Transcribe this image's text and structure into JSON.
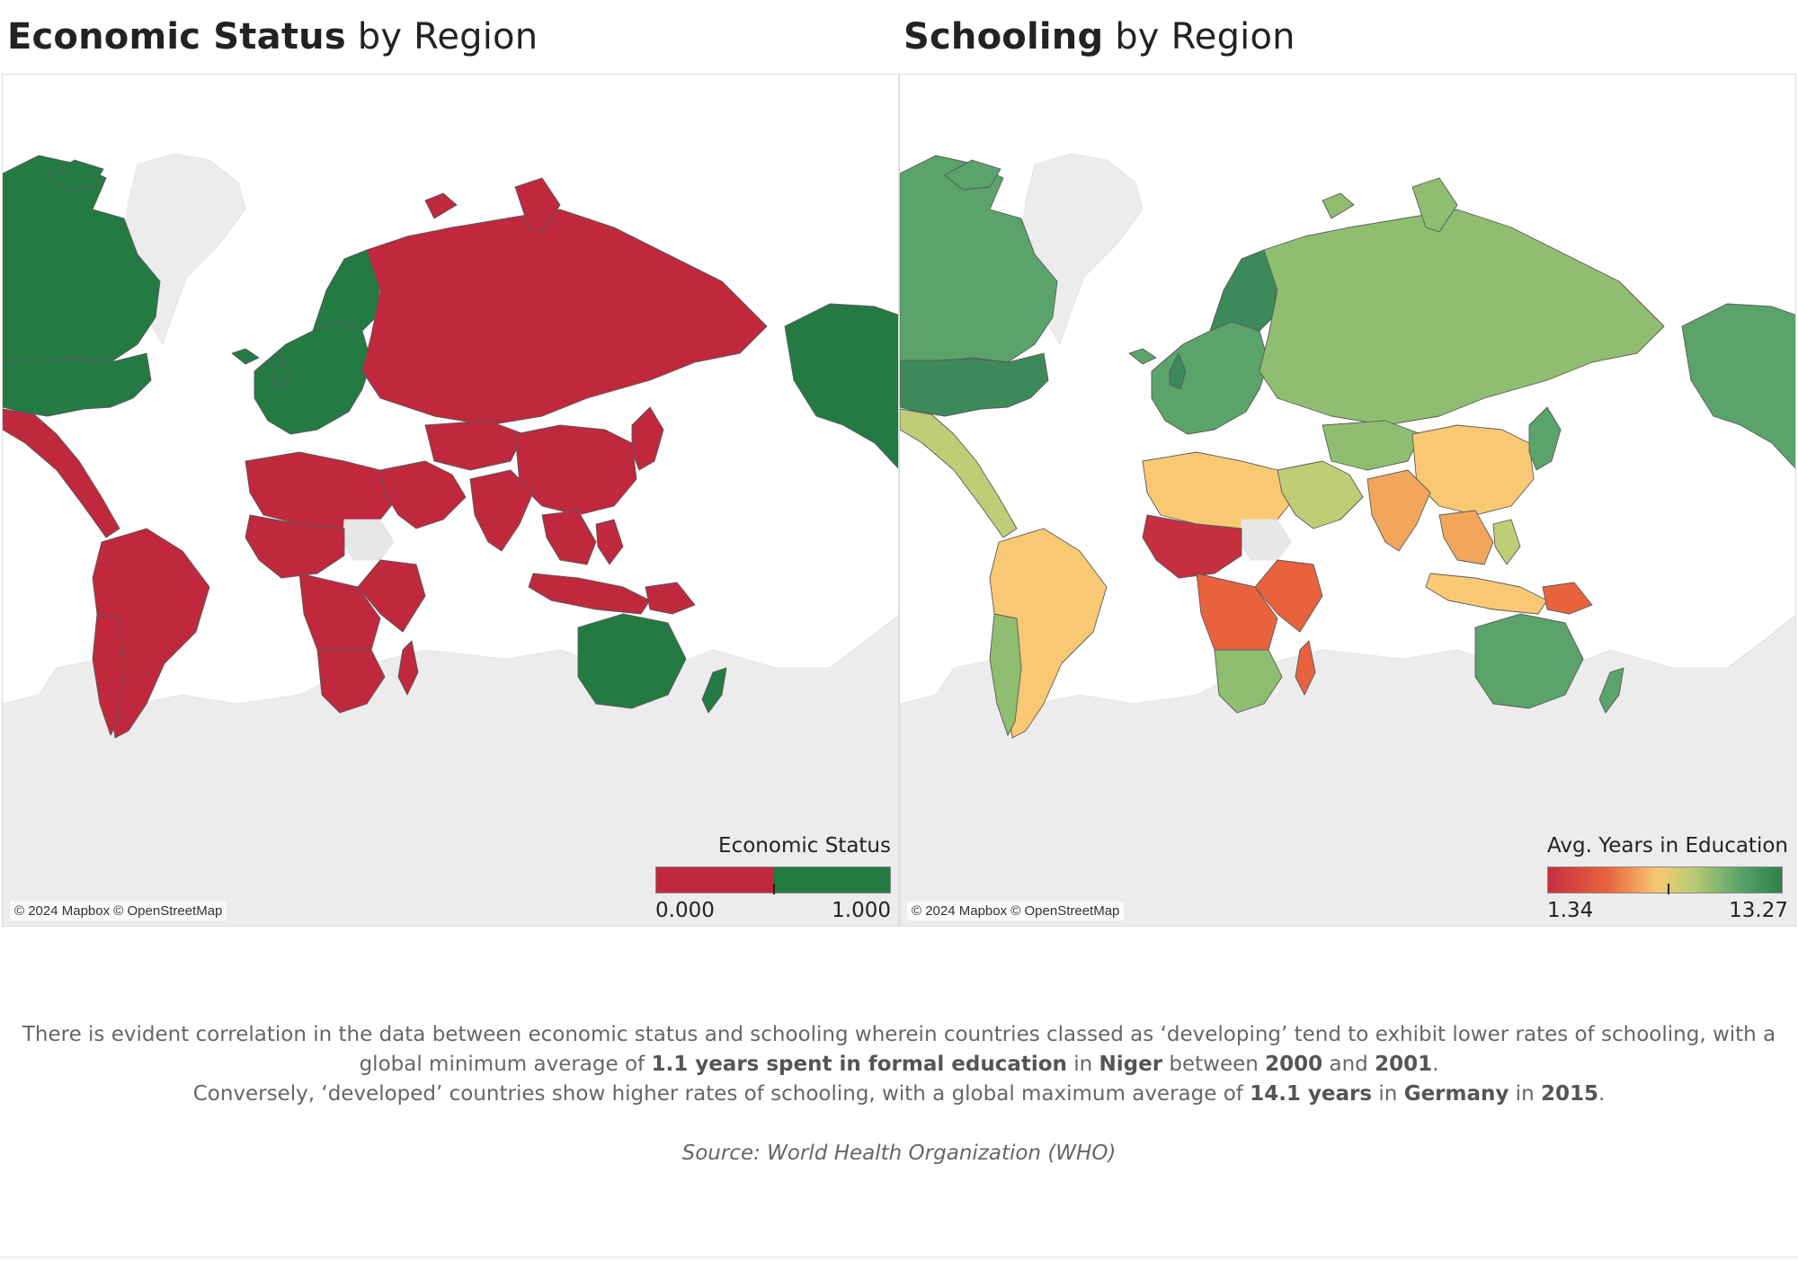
{
  "panels": {
    "economic": {
      "title_bold": "Economic Status",
      "title_rest": " by Region",
      "attribution": "© 2024 Mapbox © OpenStreetMap",
      "legend": {
        "title": "Economic Status",
        "min": "0.000",
        "max": "1.000"
      }
    },
    "schooling": {
      "title_bold": "Schooling",
      "title_rest": " by Region",
      "attribution": "© 2024 Mapbox © OpenStreetMap",
      "legend": {
        "title": "Avg. Years in Education",
        "min": "1.34",
        "max": "13.27"
      }
    }
  },
  "caption": {
    "line1a": "There is evident correlation in the data between economic status and schooling wherein countries classed as ‘developing’ tend to exhibit lower rates of schooling, with a global minimum average of ",
    "min_value": "1.1 years spent in formal education",
    "line1b": " in ",
    "min_country": "Niger",
    "line1c": " between ",
    "min_year_start": "2000",
    "line1d": " and ",
    "min_year_end": "2001",
    "line1e": ".",
    "line2a": "Conversely, ‘developed’ countries show higher rates of schooling, with a global maximum average of ",
    "max_value": "14.1 years",
    "line2b": " in ",
    "max_country": "Germany",
    "line2c": " in ",
    "max_year": "2015",
    "line2d": ".",
    "source": "Source: World Health Organization (WHO)"
  },
  "colors": {
    "developed": "#237a43",
    "developing": "#c0283d",
    "no_data": "#e7e7e7",
    "land_unshaded": "#ececec",
    "school_scale": [
      "#c62f40",
      "#e8623e",
      "#f2a65c",
      "#f8c972",
      "#bfcd76",
      "#8fbe70",
      "#5aa36b",
      "#3c8a5a"
    ]
  },
  "chart_data": [
    {
      "type": "choropleth",
      "title": "Economic Status by Region",
      "measure": "Economic Status",
      "scale": {
        "type": "binary",
        "min": 0.0,
        "max": 1.0,
        "colors": [
          "#c0283d",
          "#237a43"
        ]
      },
      "regions": {
        "North America (USA, Canada)": 1,
        "Europe (West/North/Central)": 1,
        "Eastern Europe / Balkans (partial)": 0,
        "Russia": 0,
        "Central & South America": 0,
        "Africa": 0,
        "Middle East": 0,
        "South & East Asia": 0,
        "Japan": 0,
        "Southeast Asia / Indonesia": 0,
        "Australia": 1,
        "New Zealand": 1,
        "Sudan": null
      }
    },
    {
      "type": "choropleth",
      "title": "Schooling by Region",
      "measure": "Avg. Years in Education",
      "scale": {
        "type": "diverging",
        "min": 1.34,
        "max": 13.27
      },
      "regions": {
        "North America": 12.5,
        "Europe": 12.0,
        "Russia": 11.5,
        "Australia": 12.5,
        "New Zealand": 12.0,
        "China": 7.6,
        "Central Asia": 10.5,
        "Middle East": 8.5,
        "North Africa": 6.0,
        "West Africa": 3.0,
        "Niger": 1.34,
        "East Africa": 4.5,
        "Southern Africa": 9.0,
        "India": 5.5,
        "Southeast Asia": 7.0,
        "Indonesia": 8.0,
        "Mexico": 8.5,
        "Central America": 5.5,
        "South America": 7.5,
        "Chile/Argentina": 9.5,
        "Sudan": null
      }
    }
  ]
}
